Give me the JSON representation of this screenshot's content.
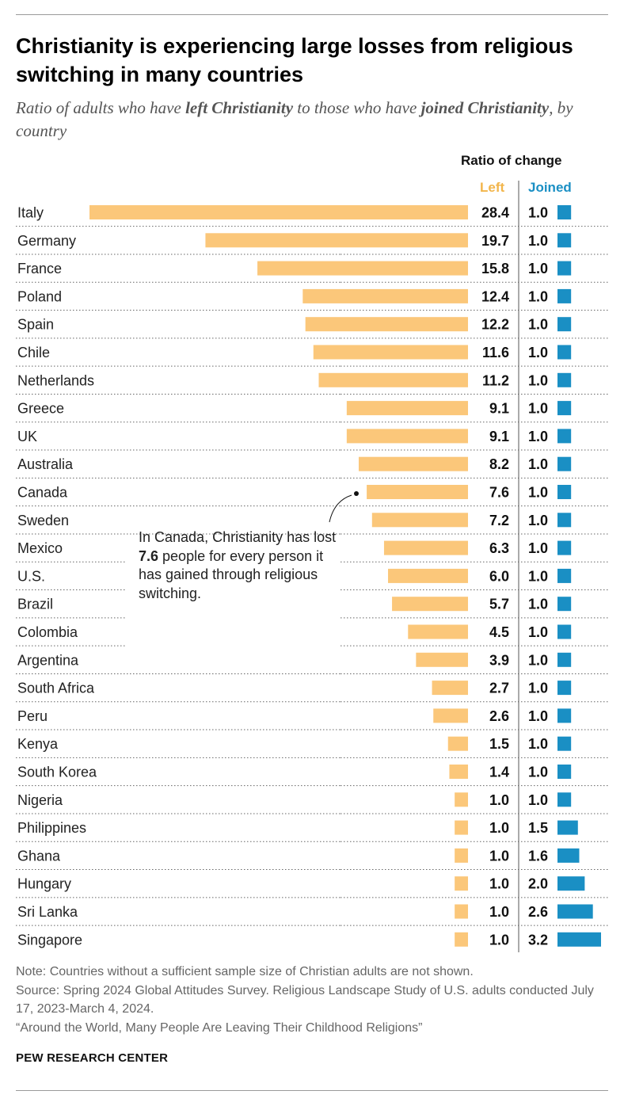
{
  "title": "Christianity is experiencing large losses from religious switching in many countries",
  "subtitle": {
    "part1": "Ratio of adults who have ",
    "bold1": "left Christianity",
    "part2": " to those who have ",
    "bold2": "joined Christianity",
    "part3": ", by country"
  },
  "headers": {
    "ratio": "Ratio of change",
    "left": "Left",
    "joined": "Joined"
  },
  "colors": {
    "left": "#fbc77a",
    "joined": "#1a8fc4",
    "left_header": "#f2b54a",
    "divider": "#555555"
  },
  "annotation": {
    "pre": "In Canada, Christianity has lost ",
    "bold": "7.6",
    "post": " people for every person it has gained through religious switching."
  },
  "notes": {
    "note": "Note: Countries without a sufficient sample size of Christian adults are not shown.",
    "source": "Source: Spring 2024 Global Attitudes Survey. Religious Landscape Study of U.S. adults conducted July 17, 2023-March 4, 2024.",
    "report": "“Around the World, Many People Are Leaving Their Childhood Religions”"
  },
  "brand": "PEW RESEARCH CENTER",
  "chart_data": {
    "type": "bar",
    "title": "Christianity is experiencing large losses from religious switching in many countries",
    "categories": [
      "Italy",
      "Germany",
      "France",
      "Poland",
      "Spain",
      "Chile",
      "Netherlands",
      "Greece",
      "UK",
      "Australia",
      "Canada",
      "Sweden",
      "Mexico",
      "U.S.",
      "Brazil",
      "Colombia",
      "Argentina",
      "South Africa",
      "Peru",
      "Kenya",
      "South Korea",
      "Nigeria",
      "Philippines",
      "Ghana",
      "Hungary",
      "Sri Lanka",
      "Singapore"
    ],
    "series": [
      {
        "name": "Left",
        "values": [
          28.4,
          19.7,
          15.8,
          12.4,
          12.2,
          11.6,
          11.2,
          9.1,
          9.1,
          8.2,
          7.6,
          7.2,
          6.3,
          6.0,
          5.7,
          4.5,
          3.9,
          2.7,
          2.6,
          1.5,
          1.4,
          1.0,
          1.0,
          1.0,
          1.0,
          1.0,
          1.0
        ]
      },
      {
        "name": "Joined",
        "values": [
          1.0,
          1.0,
          1.0,
          1.0,
          1.0,
          1.0,
          1.0,
          1.0,
          1.0,
          1.0,
          1.0,
          1.0,
          1.0,
          1.0,
          1.0,
          1.0,
          1.0,
          1.0,
          1.0,
          1.0,
          1.0,
          1.0,
          1.5,
          1.6,
          2.0,
          2.6,
          3.2
        ]
      }
    ],
    "grid": false,
    "legend": "top-right"
  }
}
